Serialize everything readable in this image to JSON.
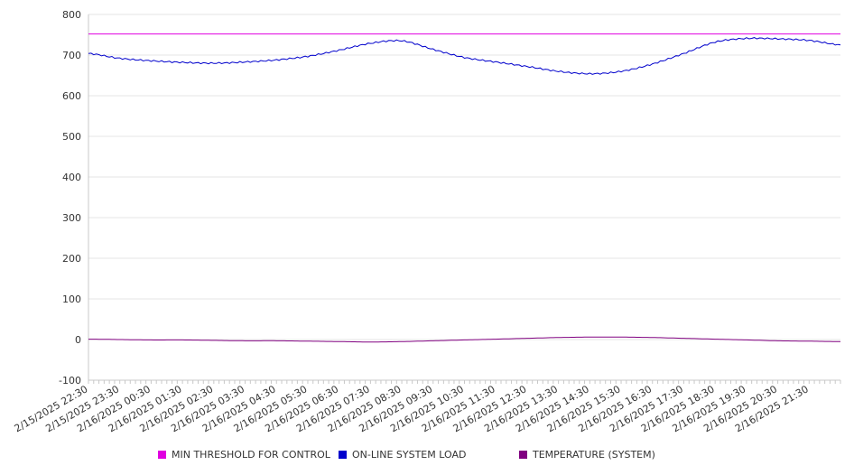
{
  "chart_data": {
    "type": "line",
    "ylim": [
      -100,
      800
    ],
    "y_ticks": [
      "800",
      "700",
      "600",
      "500",
      "400",
      "300",
      "200",
      "100",
      "0",
      "-100"
    ],
    "y_tick_values": [
      800,
      700,
      600,
      500,
      400,
      300,
      200,
      100,
      0,
      -100
    ],
    "x_ticks": [
      "2/15/2025 22:30",
      "2/15/2025 23:30",
      "2/16/2025 00:30",
      "2/16/2025 01:30",
      "2/16/2025 02:30",
      "2/16/2025 03:30",
      "2/16/2025 04:30",
      "2/16/2025 05:30",
      "2/16/2025 06:30",
      "2/16/2025 07:30",
      "2/16/2025 08:30",
      "2/16/2025 09:30",
      "2/16/2025 10:30",
      "2/16/2025 11:30",
      "2/16/2025 12:30",
      "2/16/2025 13:30",
      "2/16/2025 14:30",
      "2/16/2025 15:30",
      "2/16/2025 16:30",
      "2/16/2025 17:30",
      "2/16/2025 18:30",
      "2/16/2025 19:30",
      "2/16/2025 20:30",
      "2/16/2025 21:30"
    ],
    "x_range": [
      "2/15/2025 22:30",
      "2/16/2025 22:30"
    ],
    "grid": true,
    "legend_position": "bottom",
    "series": [
      {
        "name": "MIN THRESHOLD FOR CONTROL",
        "color": "#e000e0",
        "x": [
          "2/15/2025 22:30",
          "2/16/2025 22:30"
        ],
        "values": [
          752,
          752
        ]
      },
      {
        "name": "ON-LINE SYSTEM LOAD",
        "color": "#0000cc",
        "x": [
          "2/15/2025 22:30",
          "2/15/2025 23:30",
          "2/16/2025 00:30",
          "2/16/2025 01:30",
          "2/16/2025 02:30",
          "2/16/2025 03:30",
          "2/16/2025 04:30",
          "2/16/2025 05:30",
          "2/16/2025 06:30",
          "2/16/2025 07:30",
          "2/16/2025 08:30",
          "2/16/2025 09:30",
          "2/16/2025 10:30",
          "2/16/2025 11:30",
          "2/16/2025 12:30",
          "2/16/2025 13:30",
          "2/16/2025 14:30",
          "2/16/2025 15:30",
          "2/16/2025 16:30",
          "2/16/2025 17:30",
          "2/16/2025 18:30",
          "2/16/2025 19:30",
          "2/16/2025 20:30",
          "2/16/2025 21:30",
          "2/16/2025 22:30"
        ],
        "values": [
          704,
          692,
          686,
          682,
          680,
          683,
          688,
          697,
          712,
          729,
          735,
          714,
          694,
          683,
          672,
          660,
          654,
          660,
          678,
          704,
          732,
          741,
          740,
          736,
          725
        ]
      },
      {
        "name": "TEMPERATURE (SYSTEM)",
        "color": "#800080",
        "x": [
          "2/15/2025 22:30",
          "2/15/2025 23:30",
          "2/16/2025 00:30",
          "2/16/2025 01:30",
          "2/16/2025 02:30",
          "2/16/2025 03:30",
          "2/16/2025 04:30",
          "2/16/2025 05:30",
          "2/16/2025 06:30",
          "2/16/2025 07:30",
          "2/16/2025 08:30",
          "2/16/2025 09:30",
          "2/16/2025 10:30",
          "2/16/2025 11:30",
          "2/16/2025 12:30",
          "2/16/2025 13:30",
          "2/16/2025 14:30",
          "2/16/2025 15:30",
          "2/16/2025 16:30",
          "2/16/2025 17:30",
          "2/16/2025 18:30",
          "2/16/2025 19:30",
          "2/16/2025 20:30",
          "2/16/2025 21:30",
          "2/16/2025 22:30"
        ],
        "values": [
          1,
          0,
          -1,
          -1,
          -2,
          -3,
          -3,
          -4,
          -5,
          -6,
          -5,
          -3,
          -1,
          1,
          3,
          5,
          6,
          6,
          5,
          3,
          1,
          -1,
          -3,
          -4,
          -5
        ]
      }
    ]
  }
}
